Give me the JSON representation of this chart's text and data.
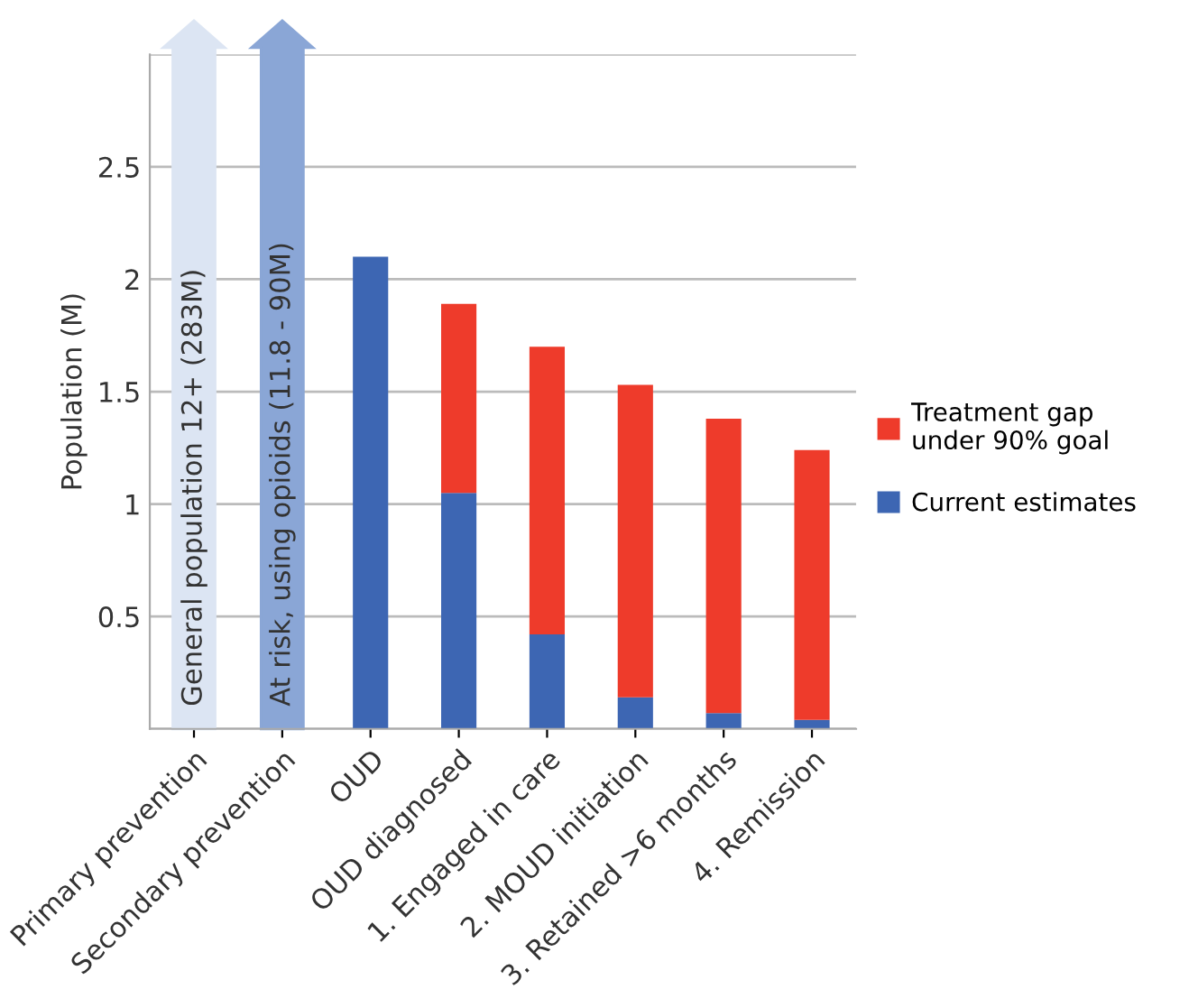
{
  "chart_data": {
    "type": "bar",
    "stacked": true,
    "ylabel": "Population (M)",
    "categories": [
      "Primary prevention",
      "Secondary prevention",
      "OUD",
      "OUD diagnosed",
      "1. Engaged in care",
      "2. MOUD initiation",
      "3. Retained >6 months",
      "4. Remission"
    ],
    "series": [
      {
        "name": "Current estimates",
        "color": "#3d66b3",
        "values": [
          null,
          null,
          2.1,
          1.05,
          0.42,
          0.14,
          0.07,
          0.04
        ]
      },
      {
        "name": "Treatment gap under 90% goal",
        "color": "#ee3b2b",
        "values": [
          null,
          null,
          null,
          0.84,
          1.28,
          1.39,
          1.31,
          1.2
        ]
      }
    ],
    "ylim": [
      0,
      3
    ],
    "yticks": [
      {
        "value": 0,
        "label": null
      },
      0.5,
      1,
      1.5,
      2,
      2.5,
      {
        "value": 3,
        "label": null
      }
    ],
    "grid": "y",
    "legend": "right",
    "annotations": [
      "General population 12+ (283M)",
      "At risk, using opioids (11.8 - 90M)"
    ]
  }
}
